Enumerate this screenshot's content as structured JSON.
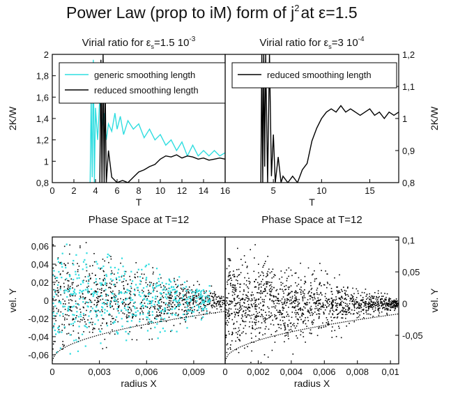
{
  "figure": {
    "title_main": "Power Law (prop to iM) form of j",
    "title_sup": "2",
    "title_tail": "at ε=1.5"
  },
  "colors": {
    "cyan": "#2fdde0",
    "black": "#000000",
    "axis": "#000000"
  },
  "chart_data": [
    {
      "id": "virial-left",
      "type": "line",
      "title_pre": "Virial ratio for",
      "title_eps": "ε",
      "title_sub": "s",
      "title_val": "=1.5 10",
      "title_sup": "-3",
      "xlabel": "T",
      "ylabel": "2K/W",
      "xlim": [
        0,
        16
      ],
      "ylim": [
        0.8,
        2.0
      ],
      "xticks": [
        0,
        2,
        4,
        6,
        8,
        10,
        12,
        14,
        16
      ],
      "xtick_labels": [
        "0",
        "2",
        "4",
        "6",
        "8",
        "10",
        "12",
        "14",
        "16"
      ],
      "yticks": [
        0.8,
        1.0,
        1.2,
        1.4,
        1.6,
        1.8,
        2.0
      ],
      "ytick_labels": [
        "0,8",
        "1",
        "1,2",
        "1,4",
        "1,6",
        "1,8",
        "2"
      ],
      "legend_position": "top",
      "series": [
        {
          "name": "generic smoothing length",
          "color": "#2fdde0",
          "x": [
            3.5,
            3.6,
            3.7,
            3.8,
            3.9,
            4.0,
            4.2,
            4.4,
            4.6,
            4.8,
            5.0,
            5.2,
            5.5,
            5.8,
            6.0,
            6.3,
            6.6,
            7.0,
            7.5,
            8.0,
            8.5,
            9.0,
            9.5,
            10.0,
            10.5,
            11.0,
            11.5,
            12.0,
            12.5,
            13.0,
            13.5,
            14.0,
            14.5,
            15.0,
            15.5,
            16.0
          ],
          "y": [
            0.8,
            1.6,
            0.85,
            1.95,
            0.8,
            1.5,
            1.2,
            1.6,
            1.3,
            1.45,
            1.2,
            1.35,
            1.28,
            1.45,
            1.3,
            1.42,
            1.25,
            1.38,
            1.3,
            1.35,
            1.22,
            1.3,
            1.2,
            1.25,
            1.15,
            1.2,
            1.1,
            1.18,
            1.05,
            1.15,
            1.05,
            1.1,
            1.05,
            1.1,
            1.05,
            1.08
          ]
        },
        {
          "name": "reduced smoothing length",
          "color": "#000000",
          "x": [
            4.4,
            4.5,
            4.6,
            4.7,
            4.8,
            4.9,
            5.0,
            5.2,
            5.5,
            6.0,
            6.5,
            7.0,
            7.5,
            8.0,
            8.5,
            9.0,
            9.5,
            10.0,
            10.5,
            11.0,
            11.5,
            12.0,
            12.5,
            13.0,
            13.5,
            14.0,
            14.5,
            15.0,
            15.5,
            16.0
          ],
          "y": [
            0.8,
            1.95,
            0.8,
            2.0,
            0.8,
            1.7,
            0.8,
            1.1,
            0.85,
            0.8,
            0.82,
            0.8,
            0.85,
            0.9,
            0.92,
            0.95,
            0.97,
            1.02,
            1.05,
            1.04,
            1.06,
            1.03,
            1.05,
            1.04,
            1.02,
            1.03,
            1.01,
            1.02,
            1.03,
            1.02
          ]
        }
      ]
    },
    {
      "id": "virial-right",
      "type": "line",
      "title_pre": "Virial ratio for",
      "title_eps": "ε",
      "title_sub": "s",
      "title_val": "=3 10",
      "title_sup": "-4",
      "xlabel": "T",
      "ylabel": "2K/W",
      "xlim": [
        0,
        18
      ],
      "ylim": [
        0.8,
        1.2
      ],
      "xticks": [
        5,
        10,
        15
      ],
      "xtick_labels": [
        "5",
        "10",
        "15"
      ],
      "yticks": [
        0.8,
        0.9,
        1.0,
        1.1,
        1.2
      ],
      "ytick_labels": [
        "0,8",
        "0,9",
        "1",
        "1,1",
        "1,2"
      ],
      "legend_position": "top",
      "series": [
        {
          "name": "reduced smoothing length",
          "color": "#000000",
          "x": [
            3.7,
            3.8,
            3.9,
            4.0,
            4.1,
            4.2,
            4.4,
            4.6,
            4.8,
            5.0,
            5.2,
            5.5,
            5.8,
            6.0,
            6.5,
            7.0,
            7.5,
            8.0,
            8.5,
            9.0,
            9.5,
            10.0,
            10.5,
            11.0,
            11.5,
            12.0,
            12.5,
            13.0,
            13.5,
            14.0,
            14.5,
            15.0,
            15.5,
            16.0,
            16.5,
            17.0,
            17.5,
            18.0
          ],
          "y": [
            0.8,
            1.2,
            0.8,
            1.2,
            0.85,
            1.2,
            0.8,
            1.2,
            0.82,
            0.95,
            0.8,
            0.88,
            0.8,
            0.82,
            0.8,
            0.82,
            0.8,
            0.84,
            0.86,
            0.93,
            0.97,
            1.0,
            1.02,
            1.03,
            1.02,
            1.04,
            1.02,
            1.03,
            1.02,
            1.01,
            1.02,
            1.03,
            1.01,
            1.02,
            1.0,
            1.02,
            1.01,
            1.02
          ]
        }
      ]
    },
    {
      "id": "phase-left",
      "type": "scatter",
      "title": "Phase Space at T=12",
      "xlabel": "radius X",
      "ylabel": "vel. Y",
      "xlim": [
        0,
        0.011
      ],
      "ylim": [
        -0.07,
        0.07
      ],
      "xticks": [
        0,
        0.003,
        0.006,
        0.009
      ],
      "xtick_labels": [
        "0",
        "0,003",
        "0,006",
        "0,009"
      ],
      "yticks": [
        -0.06,
        -0.04,
        -0.02,
        0,
        0.02,
        0.04,
        0.06
      ],
      "ytick_labels": [
        "-0,06",
        "-0,04",
        "-0,02",
        "0",
        "0,02",
        "0,04",
        "0,06"
      ],
      "series": [
        {
          "color": "#000000",
          "cloud": {
            "x_range": [
              0,
              0.011
            ],
            "vy_spread_at_0": 0.065,
            "vy_spread_at_max": 0.008,
            "count": 900
          }
        },
        {
          "color": "#2fdde0",
          "cloud": {
            "x_range": [
              0,
              0.01
            ],
            "vy_spread_at_0": 0.07,
            "vy_spread_at_max": 0.012,
            "count": 500
          }
        }
      ]
    },
    {
      "id": "phase-right",
      "type": "scatter",
      "title": "Phase Space at T=12",
      "xlabel": "radius X",
      "ylabel": "vel. Y",
      "xlim": [
        0,
        0.0105
      ],
      "ylim": [
        -0.095,
        0.105
      ],
      "xticks": [
        0,
        0.002,
        0.004,
        0.006,
        0.008,
        0.01
      ],
      "xtick_labels": [
        "0",
        "0,002",
        "0,004",
        "0,006",
        "0,008",
        "0,01"
      ],
      "yticks": [
        -0.05,
        0,
        0.05,
        0.1
      ],
      "ytick_labels": [
        "-0,05",
        "0",
        "0,05",
        "0,1"
      ],
      "series": [
        {
          "color": "#000000",
          "cloud": {
            "x_range": [
              0,
              0.0105
            ],
            "vy_spread_at_0": 0.09,
            "vy_spread_at_max": 0.008,
            "count": 1400
          }
        }
      ]
    }
  ]
}
